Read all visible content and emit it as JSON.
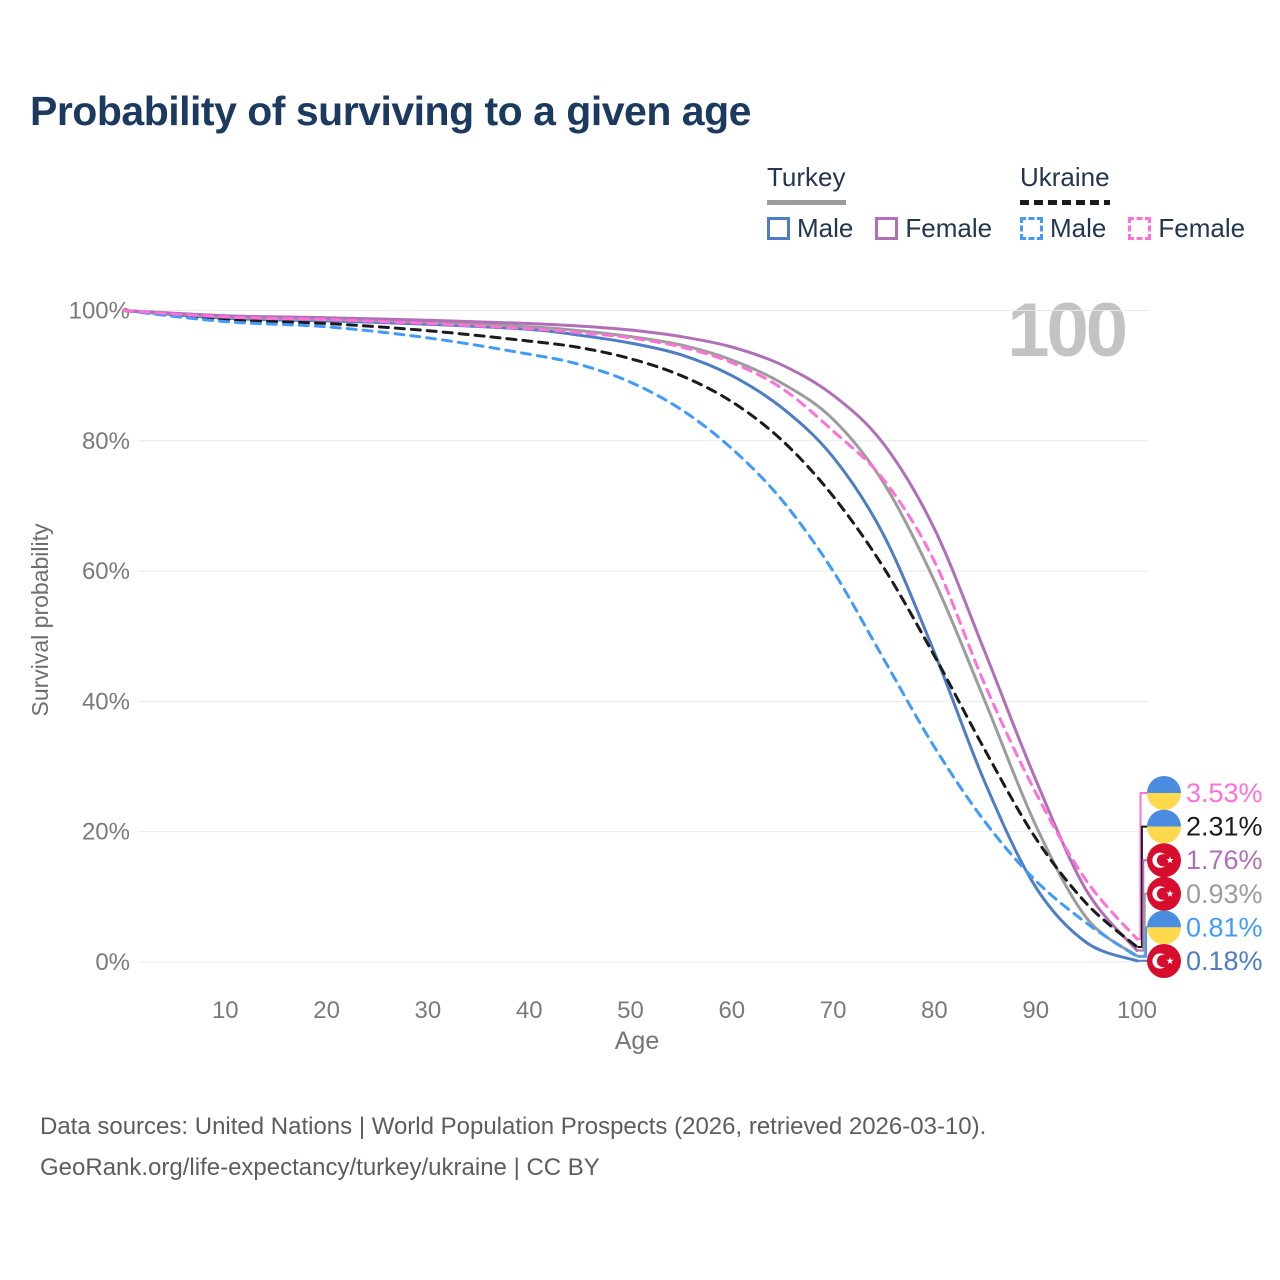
{
  "title": "Probability of surviving to a given age",
  "watermark": "100",
  "legend": {
    "groups": [
      {
        "id": "turkey",
        "label": "Turkey",
        "underline_color": "#9c9c9c",
        "underline_style": "solid",
        "items": [
          {
            "label": "Male",
            "color": "#4d7ec3",
            "dashed": false
          },
          {
            "label": "Female",
            "color": "#b06fb8",
            "dashed": false
          }
        ]
      },
      {
        "id": "ukraine",
        "label": "Ukraine",
        "underline_color": "#1b1b1b",
        "underline_style": "dashed",
        "items": [
          {
            "label": "Male",
            "color": "#419bf9",
            "dashed": true
          },
          {
            "label": "Female",
            "color": "#ff70d8",
            "dashed": true
          }
        ]
      }
    ]
  },
  "chart_data": {
    "type": "line",
    "title": "Probability of surviving to a given age",
    "xlabel": "Age",
    "ylabel": "Survival probability",
    "xlim": [
      0,
      100
    ],
    "ylim": [
      0,
      100
    ],
    "x_ticks": [
      10,
      20,
      30,
      40,
      50,
      60,
      70,
      80,
      90,
      100
    ],
    "y_ticks": [
      0,
      20,
      40,
      60,
      80,
      100
    ],
    "y_tick_suffix": "%",
    "grid": "horizontal",
    "grid_color": "#e9e9ee",
    "tick_color": "#7a7a7a",
    "x": [
      0,
      10,
      20,
      30,
      40,
      45,
      50,
      55,
      60,
      65,
      70,
      75,
      80,
      85,
      90,
      95,
      100
    ],
    "series": [
      {
        "name": "Turkey Male",
        "country": "Turkey",
        "sex": "male",
        "line": "solid",
        "color": "#4d7ec3",
        "values": [
          100,
          98.8,
          98.4,
          97.9,
          97.1,
          96.2,
          95.0,
          93.2,
          90.0,
          85.0,
          77.5,
          65.5,
          47.5,
          27.5,
          11.5,
          3.0,
          0.18
        ]
      },
      {
        "name": "Turkey Overall",
        "country": "Turkey",
        "sex": "both",
        "line": "solid",
        "color": "#9c9c9c",
        "values": [
          100,
          99.0,
          98.6,
          98.2,
          97.5,
          96.9,
          96.0,
          94.7,
          92.4,
          88.8,
          83.3,
          73.5,
          58.5,
          40.0,
          21.0,
          6.8,
          0.93
        ]
      },
      {
        "name": "Turkey Female",
        "country": "Turkey",
        "sex": "female",
        "line": "solid",
        "color": "#b06fb8",
        "values": [
          100,
          99.2,
          98.9,
          98.5,
          98.0,
          97.6,
          97.0,
          96.0,
          94.4,
          91.6,
          87.0,
          79.5,
          66.5,
          47.5,
          28.0,
          11.0,
          1.76
        ]
      },
      {
        "name": "Ukraine Overall",
        "country": "Ukraine",
        "sex": "both",
        "line": "dashed",
        "color": "#1b1b1b",
        "values": [
          100,
          98.6,
          98.0,
          96.9,
          95.3,
          94.3,
          92.6,
          90.0,
          86.0,
          80.0,
          71.5,
          60.5,
          47.0,
          32.5,
          19.0,
          9.0,
          2.31
        ]
      },
      {
        "name": "Ukraine Male",
        "country": "Ukraine",
        "sex": "male",
        "line": "dashed",
        "color": "#419bf9",
        "values": [
          100,
          98.3,
          97.5,
          95.8,
          93.3,
          91.7,
          89.0,
          84.8,
          78.8,
          70.8,
          60.0,
          46.5,
          33.0,
          21.5,
          12.5,
          6.0,
          0.81
        ]
      },
      {
        "name": "Ukraine Female",
        "country": "Ukraine",
        "sex": "female",
        "line": "dashed",
        "color": "#ff70d8",
        "values": [
          100,
          99.0,
          98.6,
          98.0,
          97.2,
          96.6,
          95.8,
          94.4,
          92.0,
          88.0,
          81.5,
          74.0,
          61.5,
          42.5,
          26.0,
          12.5,
          3.53
        ]
      }
    ],
    "end_labels": [
      {
        "text": "3.53%",
        "series": "Ukraine Female",
        "flag": "ukraine",
        "color": "#ff70d8"
      },
      {
        "text": "2.31%",
        "series": "Ukraine Overall",
        "flag": "ukraine",
        "color": "#1b1b1b"
      },
      {
        "text": "1.76%",
        "series": "Turkey Female",
        "flag": "turkey",
        "color": "#b06fb8"
      },
      {
        "text": "0.93%",
        "series": "Turkey Overall",
        "flag": "turkey",
        "color": "#9c9c9c"
      },
      {
        "text": "0.81%",
        "series": "Ukraine Male",
        "flag": "ukraine",
        "color": "#419bf9"
      },
      {
        "text": "0.18%",
        "series": "Turkey Male",
        "flag": "turkey",
        "color": "#4d7ec3"
      }
    ],
    "flag_colors": {
      "ukraine_blue": "#4a8ce0",
      "ukraine_yellow": "#ffd94d",
      "turkey_red": "#d80c2c"
    }
  },
  "footer": {
    "line1": "Data sources: United Nations | World Population Prospects (2026, retrieved 2026-03-10).",
    "line2": "GeoRank.org/life-expectancy/turkey/ukraine | CC BY"
  }
}
